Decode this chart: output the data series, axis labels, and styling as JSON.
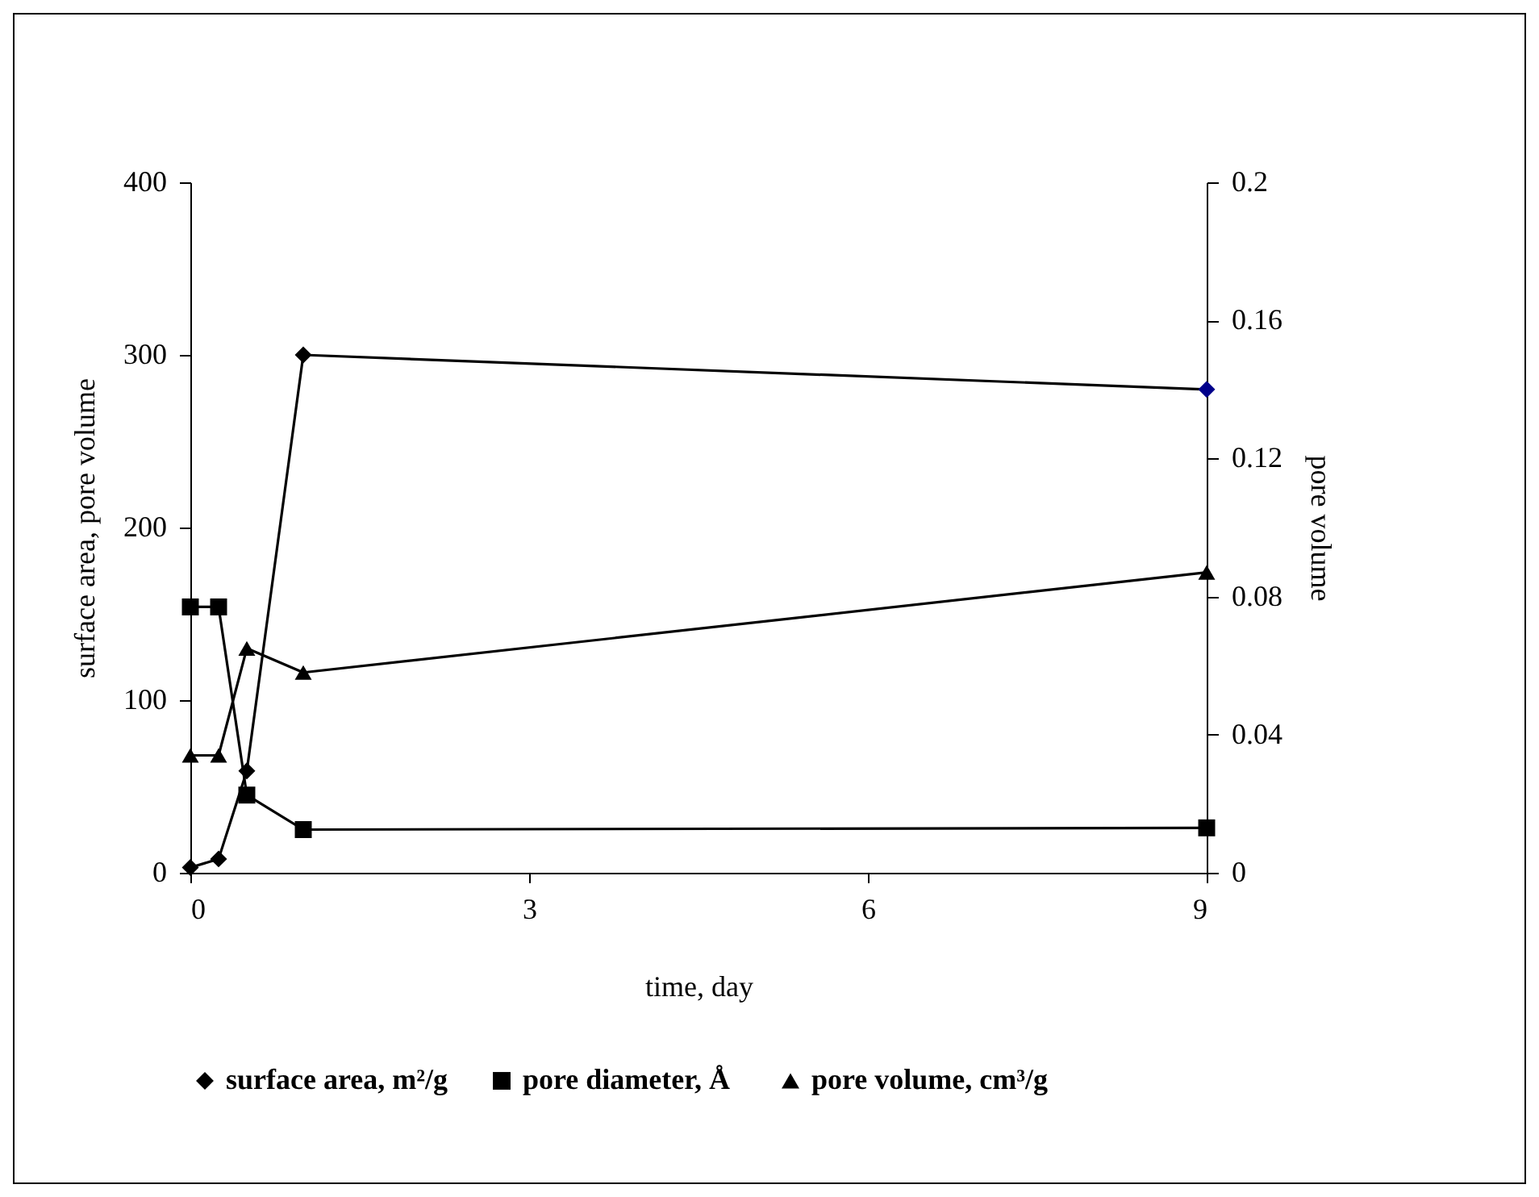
{
  "chart_data": {
    "type": "line",
    "xlabel": "time, day",
    "ylabel": "surface area, pore volume",
    "y2label": "pore volume",
    "x": [
      0,
      0.25,
      0.5,
      1,
      9
    ],
    "series": [
      {
        "name": "surface area, m²/g",
        "color": "#000000",
        "colors": [
          "#000000",
          "#000000",
          "#000000",
          "#000000",
          "#00008b"
        ],
        "marker": "diamond",
        "values": [
          3,
          8,
          59,
          300,
          280
        ]
      },
      {
        "name": "pore diameter,  Å",
        "color": "#000000",
        "marker": "square",
        "values": [
          154,
          154,
          45,
          25,
          26
        ]
      },
      {
        "name": "pore volume, cm³/g",
        "color": "#000000",
        "marker": "triangle",
        "axis": "y2",
        "values": [
          0.034,
          0.034,
          0.065,
          0.058,
          0.087
        ]
      }
    ],
    "xlim": [
      0,
      9
    ],
    "xticks": [
      0,
      3,
      6,
      9
    ],
    "ylim": [
      0,
      400
    ],
    "yticks": [
      0,
      100,
      200,
      300,
      400
    ],
    "y2lim": [
      0,
      0.2
    ],
    "y2ticks": [
      0,
      0.04,
      0.08,
      0.12,
      0.16,
      0.2
    ],
    "grid": false,
    "legend": "bottom",
    "line_style": "solid"
  }
}
